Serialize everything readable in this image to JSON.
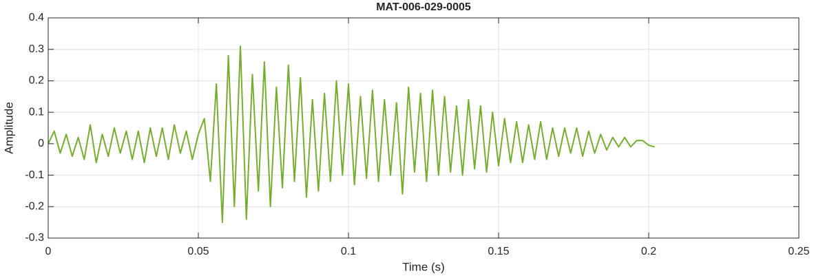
{
  "chart_data": {
    "type": "line",
    "title": "MAT-006-029-0005",
    "x_label": "Time (s)",
    "y_label": "Amplitude",
    "x": [
      0,
      0.002,
      0.004,
      0.006,
      0.008,
      0.01,
      0.012,
      0.014,
      0.016,
      0.018,
      0.02,
      0.022,
      0.024,
      0.026,
      0.028,
      0.03,
      0.032,
      0.034,
      0.036,
      0.038,
      0.04,
      0.042,
      0.044,
      0.046,
      0.048,
      0.05,
      0.052,
      0.054,
      0.056,
      0.058,
      0.06,
      0.062,
      0.064,
      0.066,
      0.068,
      0.07,
      0.072,
      0.074,
      0.076,
      0.078,
      0.08,
      0.082,
      0.084,
      0.086,
      0.088,
      0.09,
      0.092,
      0.094,
      0.096,
      0.098,
      0.1,
      0.102,
      0.104,
      0.106,
      0.108,
      0.11,
      0.112,
      0.114,
      0.116,
      0.118,
      0.12,
      0.122,
      0.124,
      0.126,
      0.128,
      0.13,
      0.132,
      0.134,
      0.136,
      0.138,
      0.14,
      0.142,
      0.144,
      0.146,
      0.148,
      0.15,
      0.152,
      0.154,
      0.156,
      0.158,
      0.16,
      0.162,
      0.164,
      0.166,
      0.168,
      0.17,
      0.172,
      0.174,
      0.176,
      0.178,
      0.18,
      0.182,
      0.184,
      0.186,
      0.188,
      0.19,
      0.192,
      0.194,
      0.196,
      0.198,
      0.2,
      0.202
    ],
    "series": [
      {
        "name": "Amplitude",
        "color": "#77ac30",
        "values": [
          0,
          0.04,
          -0.03,
          0.03,
          -0.04,
          0.02,
          -0.05,
          0.06,
          -0.06,
          0.03,
          -0.04,
          0.05,
          -0.03,
          0.04,
          -0.05,
          0.04,
          -0.06,
          0.05,
          -0.04,
          0.05,
          -0.05,
          0.06,
          -0.03,
          0.04,
          -0.05,
          0.03,
          0.08,
          -0.12,
          0.19,
          -0.25,
          0.28,
          -0.2,
          0.31,
          -0.24,
          0.22,
          -0.15,
          0.26,
          -0.2,
          0.18,
          -0.14,
          0.25,
          -0.12,
          0.21,
          -0.17,
          0.14,
          -0.15,
          0.16,
          -0.12,
          0.2,
          -0.1,
          0.19,
          -0.13,
          0.15,
          -0.11,
          0.17,
          -0.12,
          0.14,
          -0.1,
          0.13,
          -0.16,
          0.18,
          -0.09,
          0.16,
          -0.12,
          0.17,
          -0.1,
          0.15,
          -0.09,
          0.12,
          -0.1,
          0.14,
          -0.08,
          0.12,
          -0.09,
          0.1,
          -0.07,
          0.08,
          -0.06,
          0.07,
          -0.06,
          0.06,
          -0.05,
          0.07,
          -0.05,
          0.05,
          -0.04,
          0.05,
          -0.03,
          0.05,
          -0.04,
          0.04,
          -0.03,
          0.03,
          -0.02,
          0.02,
          -0.01,
          0.02,
          -0.01,
          0.01,
          0.01,
          -0.005,
          -0.01
        ]
      }
    ],
    "xlim": [
      0,
      0.25
    ],
    "xticks": [
      0,
      0.05,
      0.1,
      0.15,
      0.2,
      0.25
    ],
    "ylim": [
      -0.3,
      0.4
    ],
    "yticks": [
      -0.3,
      -0.2,
      -0.1,
      0,
      0.1,
      0.2,
      0.3,
      0.4
    ],
    "grid": true
  }
}
